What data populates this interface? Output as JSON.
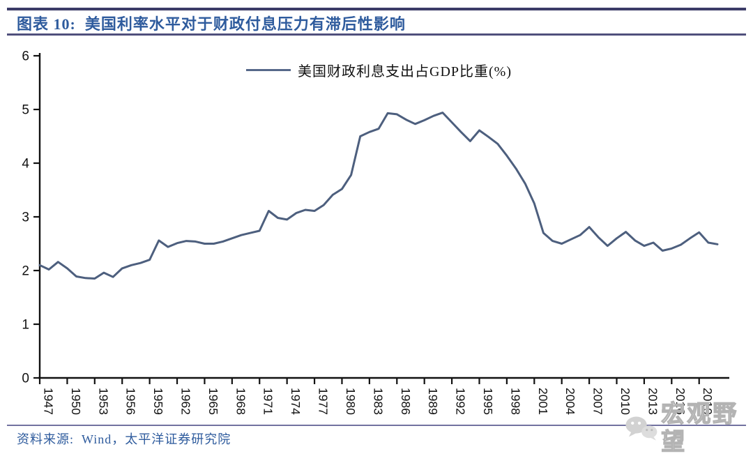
{
  "header": {
    "title": "图表 10:  美国利率水平对于财政付息压力有滞后性影响"
  },
  "legend": {
    "label": "美国财政利息支出占GDP比重(%)"
  },
  "chart_data": {
    "type": "line",
    "title": "美国财政利息支出占GDP比重(%)",
    "xlabel": "",
    "ylabel": "",
    "ylim": [
      0,
      6
    ],
    "yticks": [
      0,
      1,
      2,
      3,
      4,
      5,
      6
    ],
    "xticks": [
      1947,
      1950,
      1953,
      1956,
      1959,
      1962,
      1965,
      1968,
      1971,
      1974,
      1977,
      1980,
      1983,
      1986,
      1989,
      1992,
      1995,
      1998,
      2001,
      2004,
      2007,
      2010,
      2013,
      2016,
      2019
    ],
    "grid": false,
    "legend_position": "top-center",
    "line_color": "#4d5f7e",
    "axis_color": "#111111",
    "series": [
      {
        "name": "美国财政利息支出占GDP比重(%)",
        "x_start": 1947,
        "x_step": 1,
        "values": [
          2.1,
          2.02,
          2.16,
          2.04,
          1.89,
          1.86,
          1.85,
          1.96,
          1.88,
          2.04,
          2.1,
          2.14,
          2.2,
          2.56,
          2.44,
          2.51,
          2.55,
          2.54,
          2.5,
          2.5,
          2.54,
          2.6,
          2.66,
          2.7,
          2.74,
          3.11,
          2.98,
          2.95,
          3.07,
          3.13,
          3.11,
          3.22,
          3.41,
          3.52,
          3.78,
          4.5,
          4.58,
          4.64,
          4.93,
          4.91,
          4.81,
          4.73,
          4.8,
          4.88,
          4.94,
          4.76,
          4.58,
          4.41,
          4.61,
          4.49,
          4.36,
          4.14,
          3.9,
          3.62,
          3.25,
          2.7,
          2.55,
          2.5,
          2.58,
          2.66,
          2.81,
          2.62,
          2.46,
          2.6,
          2.72,
          2.56,
          2.46,
          2.52,
          2.37,
          2.41,
          2.48,
          2.6,
          2.71,
          2.52,
          2.49
        ]
      }
    ]
  },
  "footer": {
    "source": "资料来源:  Wind，太平洋证券研究院"
  },
  "watermark": {
    "text": "宏观野望"
  }
}
